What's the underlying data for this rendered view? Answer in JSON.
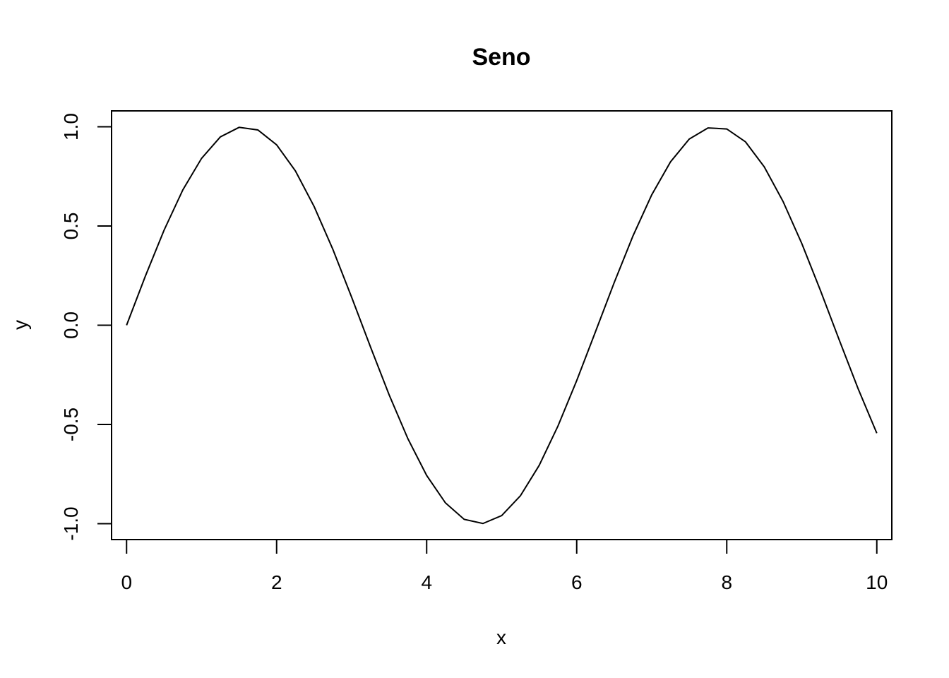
{
  "chart_data": {
    "type": "line",
    "title": "Seno",
    "xlabel": "x",
    "ylabel": "y",
    "xlim": [
      -0.2,
      10.2
    ],
    "ylim": [
      -1.08,
      1.08
    ],
    "x_ticks": [
      0,
      2,
      4,
      6,
      8,
      10
    ],
    "x_tick_labels": [
      "0",
      "2",
      "4",
      "6",
      "8",
      "10"
    ],
    "y_ticks": [
      -1.0,
      -0.5,
      0.0,
      0.5,
      1.0
    ],
    "y_tick_labels": [
      "-1.0",
      "-0.5",
      "0.0",
      "0.5",
      "1.0"
    ],
    "grid": false,
    "legend": "none",
    "line_color": "#000000",
    "series": [
      {
        "x": [
          0,
          0.25,
          0.5,
          0.75,
          1,
          1.25,
          1.5,
          1.75,
          2,
          2.25,
          2.5,
          2.75,
          3,
          3.25,
          3.5,
          3.75,
          4,
          4.25,
          4.5,
          4.75,
          5,
          5.25,
          5.5,
          5.75,
          6,
          6.25,
          6.5,
          6.75,
          7,
          7.25,
          7.5,
          7.75,
          8,
          8.25,
          8.5,
          8.75,
          9,
          9.25,
          9.5,
          9.75,
          10
        ],
        "y": [
          0,
          0.247,
          0.479,
          0.682,
          0.841,
          0.949,
          0.997,
          0.984,
          0.909,
          0.778,
          0.598,
          0.382,
          0.141,
          -0.108,
          -0.351,
          -0.572,
          -0.757,
          -0.895,
          -0.978,
          -0.999,
          -0.959,
          -0.859,
          -0.706,
          -0.508,
          -0.279,
          -0.033,
          0.215,
          0.45,
          0.657,
          0.823,
          0.938,
          0.994,
          0.989,
          0.924,
          0.798,
          0.624,
          0.412,
          0.174,
          -0.075,
          -0.319,
          -0.544
        ]
      }
    ]
  }
}
